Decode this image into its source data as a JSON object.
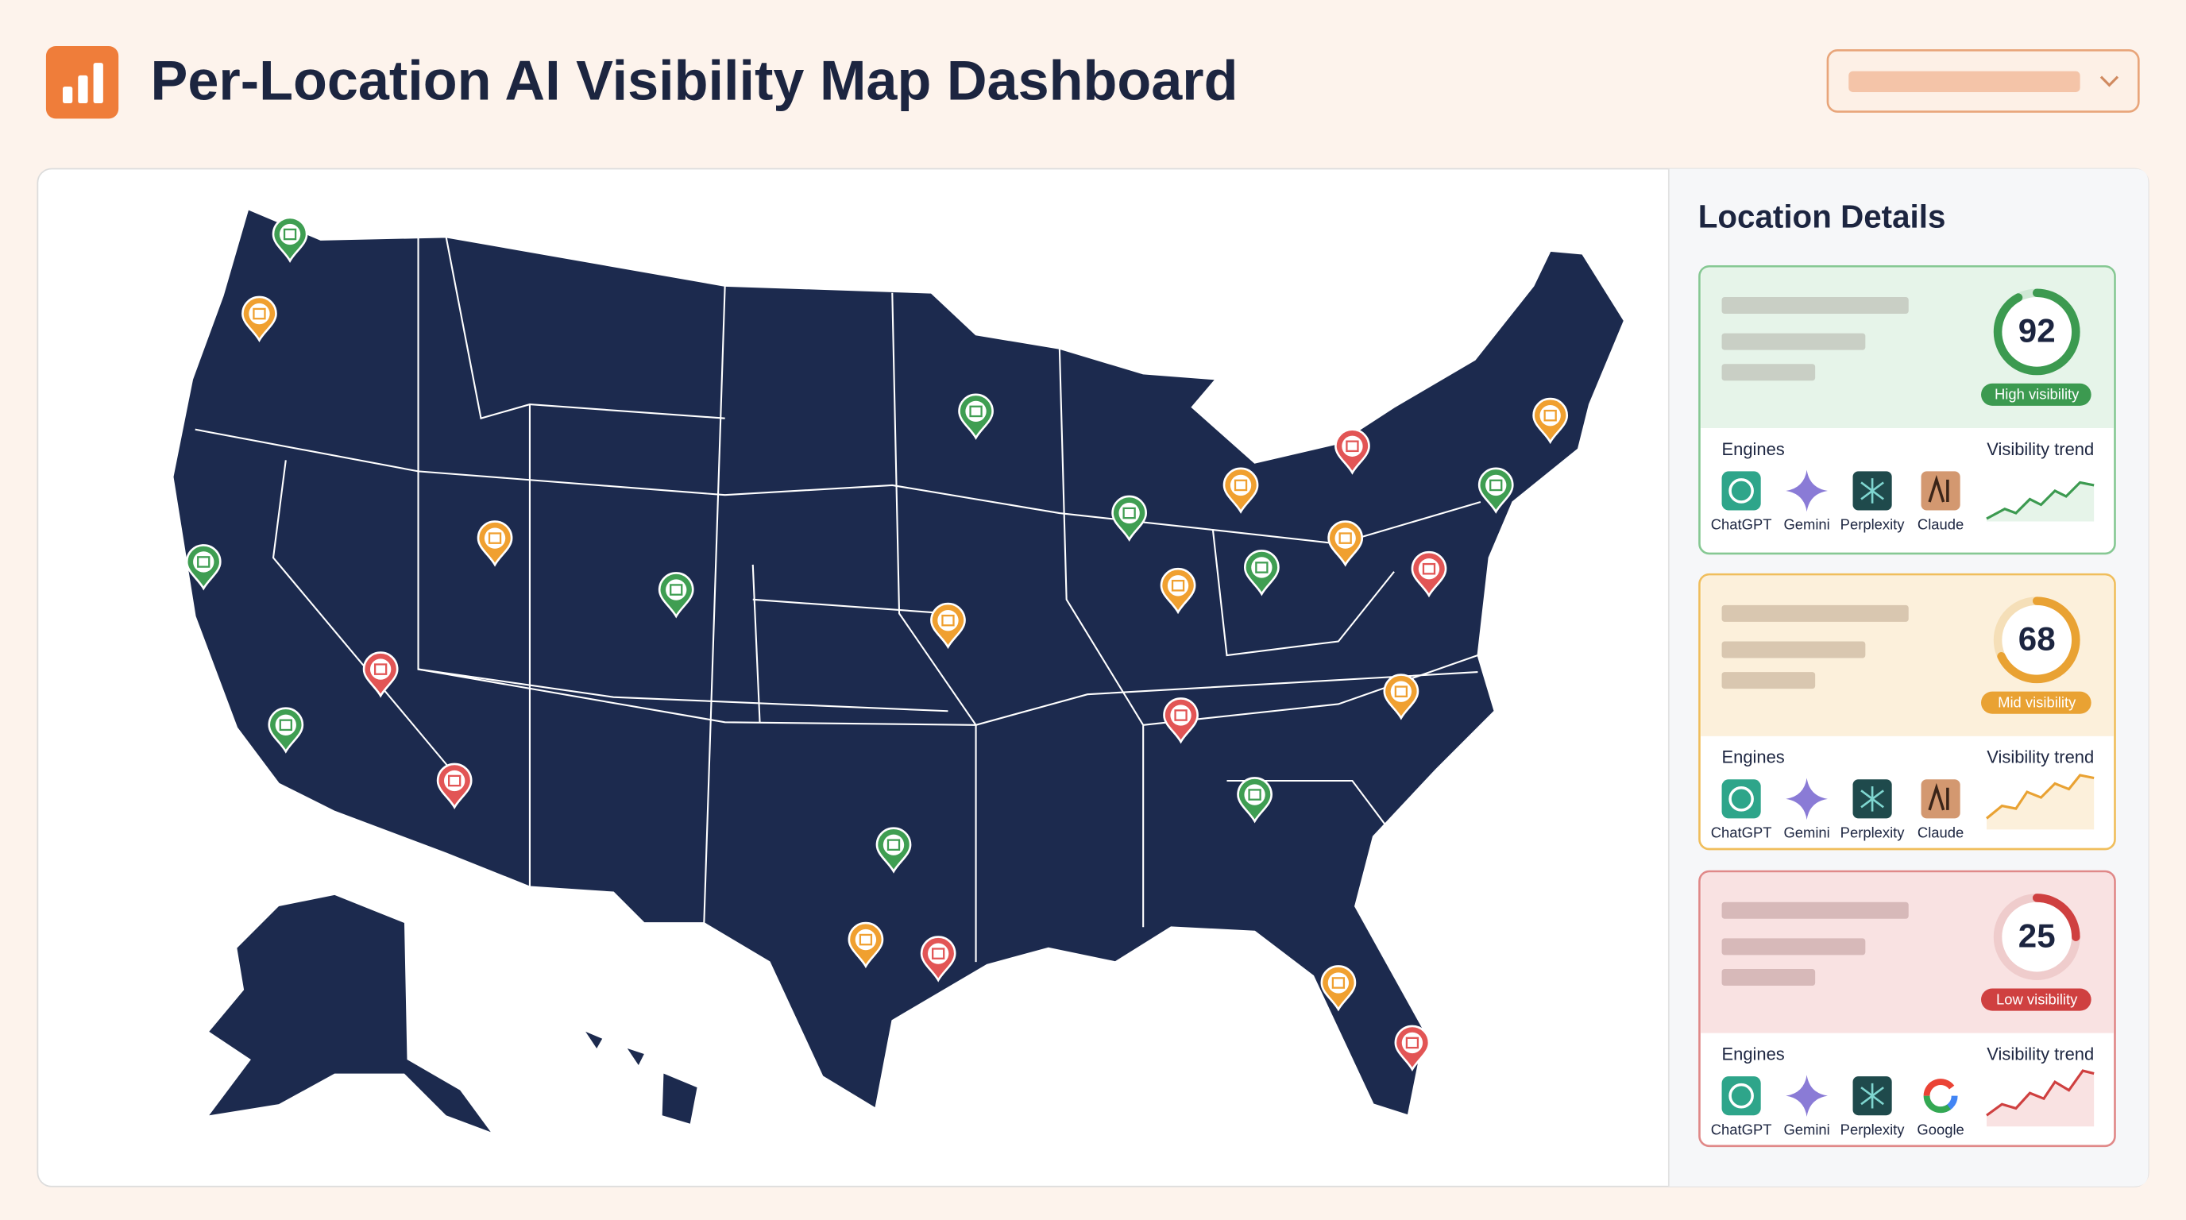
{
  "header": {
    "title": "Per-Location AI Visibility Map Dashboard"
  },
  "panel": {
    "title": "Location Details",
    "cards": [
      {
        "score": 92,
        "status": "High visibility",
        "engines_label": "Engines",
        "trend_label": "Visibility trend",
        "engines": [
          "ChatGPT",
          "Gemini",
          "Perplexity",
          "Claude"
        ]
      },
      {
        "score": 68,
        "status": "Mid visibility",
        "engines_label": "Engines",
        "trend_label": "Visibility trend",
        "engines": [
          "ChatGPT",
          "Gemini",
          "Perplexity",
          "Claude"
        ]
      },
      {
        "score": 25,
        "status": "Low visibility",
        "engines_label": "Engines",
        "trend_label": "Visibility trend",
        "engines": [
          "ChatGPT",
          "Gemini",
          "Perplexity",
          "Google"
        ]
      }
    ]
  }
}
